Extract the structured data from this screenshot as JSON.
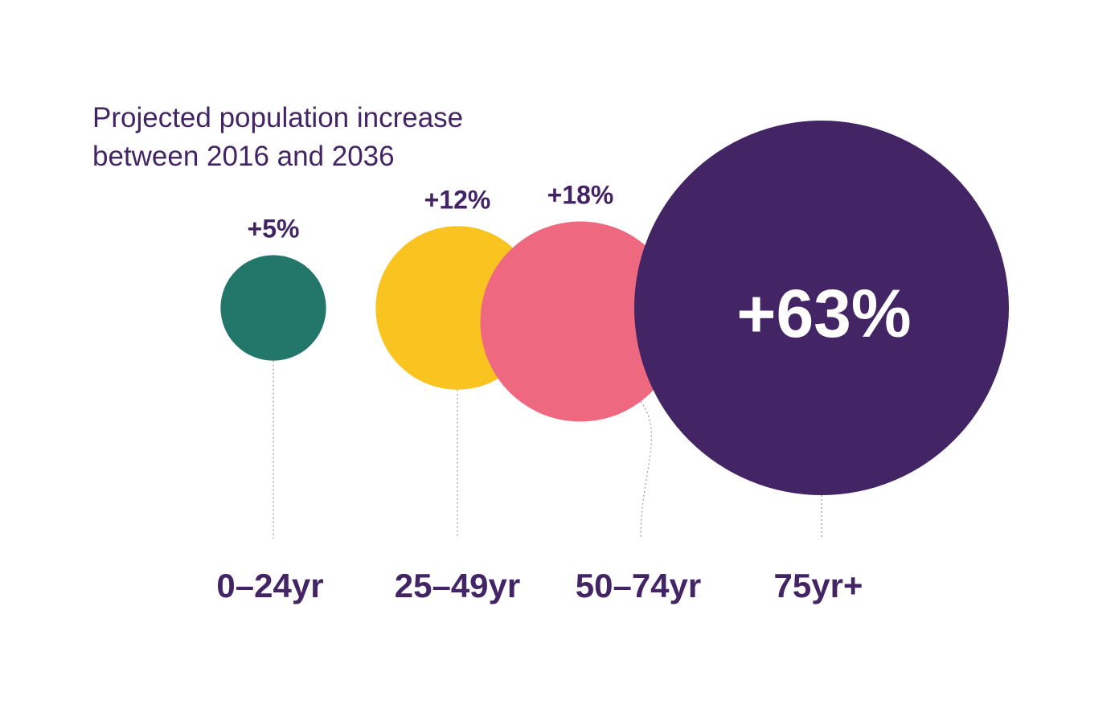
{
  "chart_data": {
    "type": "bubble",
    "title": [
      "Projected population increase",
      "between 2016 and 2036"
    ],
    "categories": [
      "0–24yr",
      "25–49yr",
      "50–74yr",
      "75yr+"
    ],
    "values": [
      5,
      12,
      18,
      63
    ],
    "labels": [
      "+5%",
      "+12%",
      "+18%",
      "+63%"
    ],
    "unit": "%",
    "colors": [
      "#23766a",
      "#f9c41f",
      "#ee6880",
      "#432566"
    ]
  }
}
